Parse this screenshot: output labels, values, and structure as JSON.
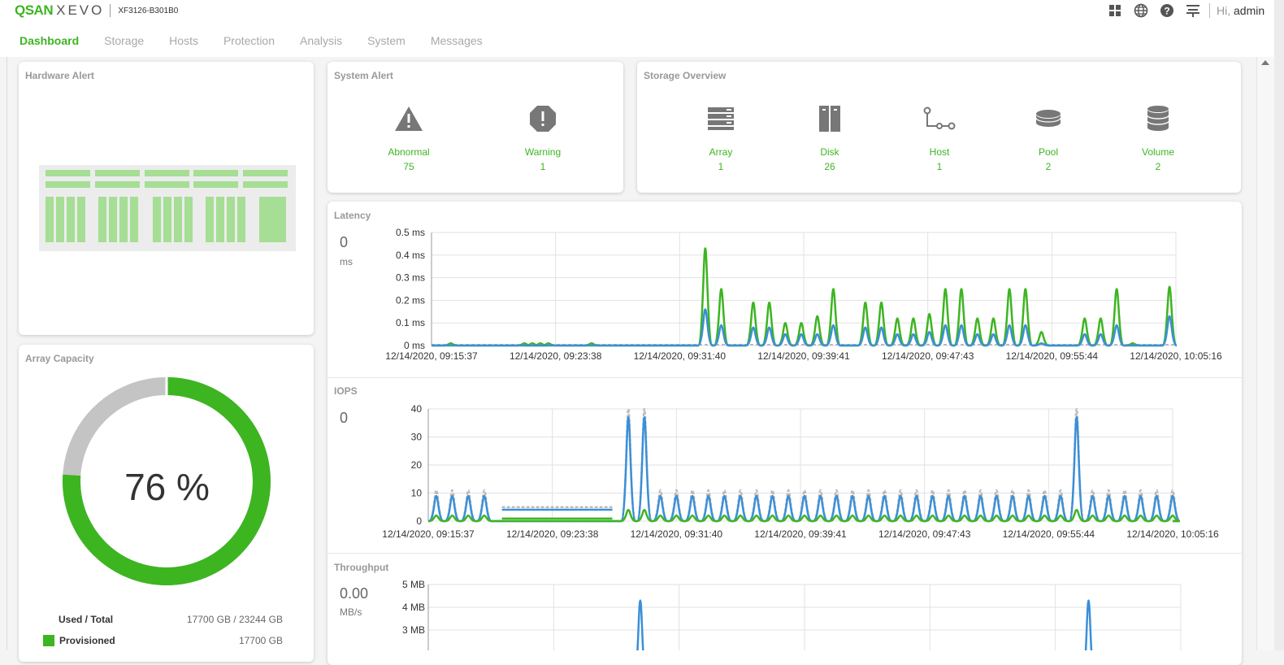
{
  "header": {
    "logo_brand": "QSAN",
    "logo_product": "XEVO",
    "model": "XF3126-B301B0",
    "greeting": "Hi,",
    "user": "admin",
    "icons": [
      "grid-icon",
      "globe-icon",
      "help-icon",
      "network-icon"
    ]
  },
  "nav": {
    "items": [
      {
        "label": "Dashboard",
        "active": true
      },
      {
        "label": "Storage"
      },
      {
        "label": "Hosts"
      },
      {
        "label": "Protection"
      },
      {
        "label": "Analysis"
      },
      {
        "label": "System"
      },
      {
        "label": "Messages"
      }
    ]
  },
  "hardware_alert": {
    "title": "Hardware Alert"
  },
  "system_alert": {
    "title": "System Alert",
    "items": [
      {
        "label": "Abnormal",
        "value": "75",
        "icon": "warning-triangle-icon"
      },
      {
        "label": "Warning",
        "value": "1",
        "icon": "warning-octagon-icon"
      }
    ]
  },
  "storage_overview": {
    "title": "Storage Overview",
    "items": [
      {
        "label": "Array",
        "value": "1",
        "icon": "array-icon"
      },
      {
        "label": "Disk",
        "value": "26",
        "icon": "disk-icon"
      },
      {
        "label": "Host",
        "value": "1",
        "icon": "host-icon"
      },
      {
        "label": "Pool",
        "value": "2",
        "icon": "pool-icon"
      },
      {
        "label": "Volume",
        "value": "2",
        "icon": "volume-icon"
      }
    ]
  },
  "array_capacity": {
    "title": "Array Capacity",
    "percent_label": "76 %",
    "used_fraction": 0.76,
    "used_total_label": "Used / Total",
    "used_total_value": "17700 GB / 23244 GB",
    "provisioned_label": "Provisioned",
    "provisioned_value": "17700 GB"
  },
  "colors": {
    "accent": "#3cb521",
    "blue_series": "#3b8fd8",
    "gray_series": "#bbbbbb",
    "unused": "#c4c4c4"
  },
  "latency": {
    "title": "Latency",
    "current_value": "0",
    "unit": "ms"
  },
  "iops": {
    "title": "IOPS",
    "current_value": "0"
  },
  "throughput": {
    "title": "Throughput",
    "current_value": "0.00",
    "unit": "MB/s"
  },
  "chart_data": [
    {
      "type": "line",
      "title": "Latency",
      "ylabel": "ms",
      "ylim": [
        0,
        0.5
      ],
      "y_ticks": [
        "0 ms",
        "0.1 ms",
        "0.2 ms",
        "0.3 ms",
        "0.4 ms",
        "0.5 ms"
      ],
      "x_ticks": [
        "12/14/2020, 09:15:37",
        "12/14/2020, 09:23:38",
        "12/14/2020, 09:31:40",
        "12/14/2020, 09:39:41",
        "12/14/2020, 09:47:43",
        "12/14/2020, 09:55:44",
        "12/14/2020, 10:05:16"
      ],
      "x": [
        0,
        1.2,
        5.8,
        6.3,
        6.8,
        7.3,
        10,
        17.1,
        18.1,
        19.1,
        20.1,
        21.1,
        22.1,
        23.1,
        24.1,
        25.1,
        26.1,
        27.1,
        28.1,
        29.1,
        30.1,
        31.1,
        32.1,
        33.1,
        34.1,
        35.1,
        36.1,
        37.1,
        38.1,
        40.8,
        41.8,
        42.8,
        43.8,
        46.1
      ],
      "series": [
        {
          "color": "#3cb521",
          "values": [
            0,
            0.01,
            0.01,
            0.01,
            0.01,
            0.01,
            0.01,
            0.43,
            0.25,
            0,
            0.19,
            0.19,
            0.1,
            0.1,
            0.13,
            0.25,
            0,
            0.19,
            0.19,
            0.12,
            0.12,
            0.14,
            0.25,
            0.25,
            0.12,
            0.12,
            0.25,
            0.25,
            0.06,
            0.12,
            0.12,
            0.25,
            0.01,
            0.26
          ]
        },
        {
          "color": "#3b8fd8",
          "values": [
            0,
            0,
            0,
            0,
            0,
            0,
            0,
            0.16,
            0.09,
            0,
            0.08,
            0.08,
            0.05,
            0.05,
            0.05,
            0.09,
            0,
            0.08,
            0.08,
            0.05,
            0.05,
            0.06,
            0.09,
            0.09,
            0.05,
            0.05,
            0.09,
            0.09,
            0.01,
            0.05,
            0.05,
            0.09,
            0,
            0.13
          ]
        }
      ]
    },
    {
      "type": "line",
      "title": "IOPS",
      "ylim": [
        0,
        40
      ],
      "y_ticks": [
        "0",
        "10",
        "20",
        "30",
        "40"
      ],
      "x_ticks": [
        "12/14/2020, 09:15:37",
        "12/14/2020, 09:23:38",
        "12/14/2020, 09:31:40",
        "12/14/2020, 09:39:41",
        "12/14/2020, 09:47:43",
        "12/14/2020, 09:55:44",
        "12/14/2020, 10:05:16"
      ],
      "spike_positions": [
        13.1,
        40.8
      ],
      "spike_value": 38,
      "baseline_peak": 9,
      "series": [
        {
          "color": "#bbbbbb",
          "baseline_peak": 11,
          "spike_value": 40
        },
        {
          "color": "#3b8fd8",
          "baseline_peak": 9,
          "spike_value": 37
        },
        {
          "color": "#3cb521",
          "baseline_peak": 2,
          "spike_value": 4
        }
      ]
    },
    {
      "type": "line",
      "title": "Throughput",
      "ylim": [
        0,
        5
      ],
      "y_ticks": [
        "3 MB",
        "4 MB",
        "5 MB"
      ],
      "spike_positions": [
        13.1,
        40.8
      ],
      "spike_value": 4.3,
      "series": [
        {
          "color": "#3b8fd8",
          "spike_value": 4.3
        }
      ]
    }
  ]
}
